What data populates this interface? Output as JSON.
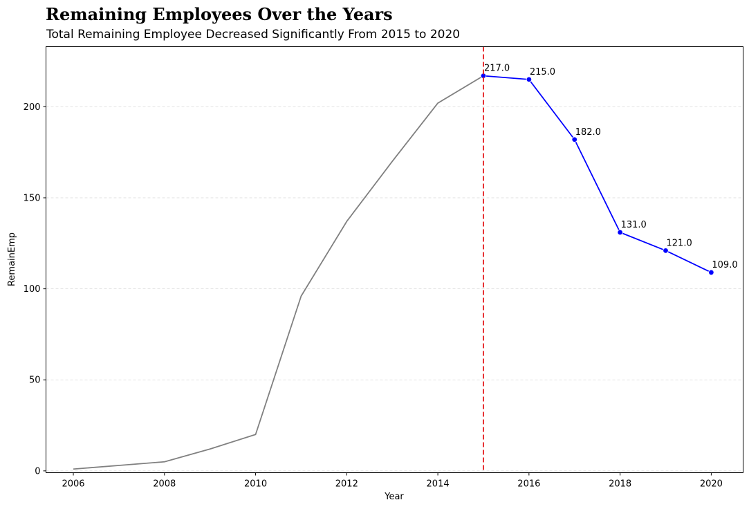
{
  "chart_data": {
    "type": "line",
    "title": "Remaining Employees Over the Years",
    "subtitle": "Total Remaining Employee Decreased Significantly From 2015 to 2020",
    "xlabel": "Year",
    "ylabel": "RemainEmp",
    "xlim": [
      2005.4,
      2020.7
    ],
    "ylim": [
      -1,
      233
    ],
    "x_ticks": [
      2006,
      2008,
      2010,
      2012,
      2014,
      2016,
      2018,
      2020
    ],
    "y_ticks": [
      0,
      50,
      100,
      150,
      200
    ],
    "grid": "horizontal dashed",
    "legend": "none",
    "series": [
      {
        "color": "#808080",
        "x": [
          2006,
          2007,
          2008,
          2009,
          2010,
          2011,
          2012,
          2013,
          2014,
          2015
        ],
        "y": [
          1,
          3,
          5,
          12,
          20,
          96,
          137,
          170,
          202,
          217
        ]
      },
      {
        "color": "#0000ff",
        "markers": true,
        "x": [
          2015,
          2016,
          2017,
          2018,
          2019,
          2020
        ],
        "y": [
          217,
          215,
          182,
          131,
          121,
          109
        ],
        "data_labels": [
          "217.0",
          "215.0",
          "182.0",
          "131.0",
          "121.0",
          "109.0"
        ]
      }
    ],
    "annotations": [
      {
        "type": "vline",
        "x": 2015,
        "color": "#e41a1c",
        "style": "dashed"
      }
    ]
  }
}
